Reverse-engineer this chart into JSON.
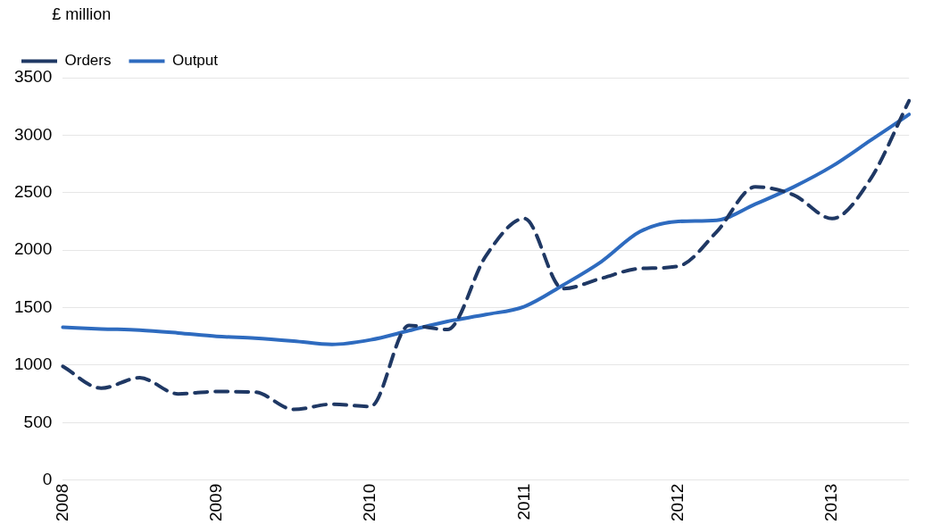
{
  "chart_data": {
    "type": "line",
    "ylabel": "£ million",
    "categories": [
      "2008",
      null,
      null,
      null,
      "2009",
      null,
      null,
      null,
      "2010",
      null,
      null,
      null,
      "2011",
      null,
      null,
      null,
      "2012",
      null,
      null,
      null,
      "2013",
      null,
      null
    ],
    "series": [
      {
        "name": "Orders",
        "color": "#1f3864",
        "line_style": "dashed",
        "values": [
          990,
          800,
          890,
          750,
          770,
          765,
          615,
          660,
          640,
          1345,
          1310,
          1950,
          2275,
          1665,
          1755,
          1840,
          1860,
          2160,
          2550,
          2480,
          2275,
          2620,
          3300
        ]
      },
      {
        "name": "Output",
        "color": "#2e6bbf",
        "line_style": "solid",
        "values": [
          1330,
          1315,
          1305,
          1280,
          1250,
          1235,
          1210,
          1180,
          1220,
          1300,
          1380,
          1440,
          1510,
          1695,
          1900,
          2160,
          2250,
          2260,
          2400,
          2550,
          2730,
          2955,
          3180
        ]
      }
    ],
    "ylim": [
      0,
      3500
    ],
    "yticks": [
      0,
      500,
      1000,
      1500,
      2000,
      2500,
      3000,
      3500
    ],
    "grid": "y",
    "legend": "top left",
    "marker": "none"
  }
}
